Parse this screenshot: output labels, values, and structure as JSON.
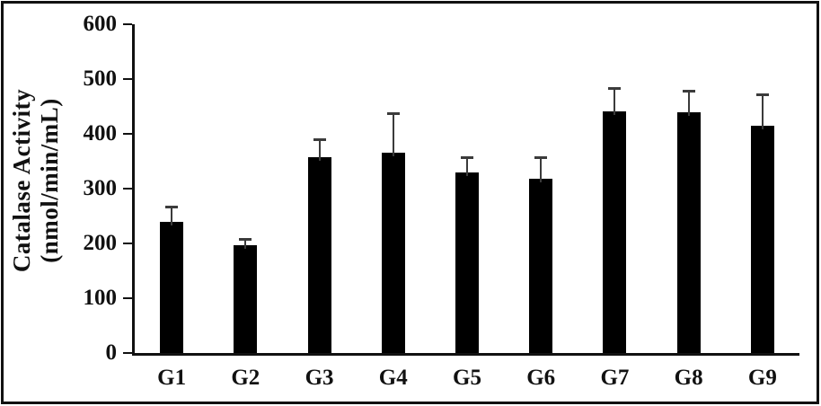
{
  "figure": {
    "background": "#ffffff",
    "border_color": "#111111"
  },
  "chart_data": {
    "type": "bar",
    "title": "",
    "ylabel_line1": "Catalase Activity",
    "ylabel_line2": "(nmol/min/mL)",
    "xlabel": "",
    "categories": [
      "G1",
      "G2",
      "G3",
      "G4",
      "G5",
      "G6",
      "G7",
      "G8",
      "G9"
    ],
    "values": [
      240,
      196,
      358,
      365,
      329,
      318,
      441,
      440,
      415
    ],
    "errors_upper": [
      27,
      13,
      32,
      73,
      29,
      39,
      42,
      39,
      57
    ],
    "ylim": [
      0,
      600
    ],
    "yticks": [
      "0",
      "100",
      "200",
      "300",
      "400",
      "500",
      "600"
    ],
    "ytick_values": [
      0,
      100,
      200,
      300,
      400,
      500,
      600
    ],
    "bar_color": "#000000",
    "error_bar_color": "#3b3b3b",
    "axis_color": "#111111",
    "grid": false,
    "legend": false
  }
}
